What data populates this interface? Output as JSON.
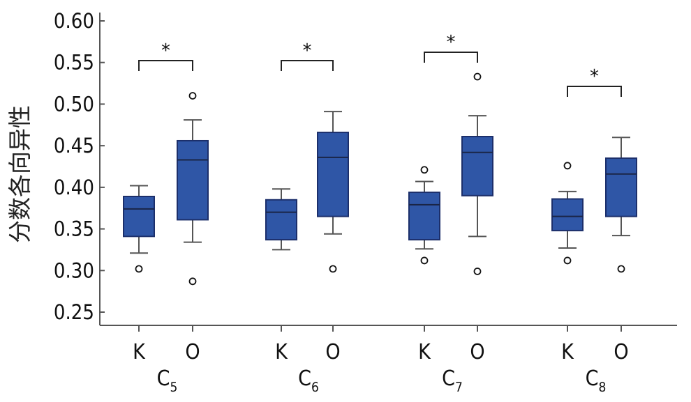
{
  "chart_data": {
    "type": "boxplot",
    "ylabel": "分数各向异性",
    "xlabel": "",
    "ylim": [
      0.23,
      0.61
    ],
    "yticks": [
      0.25,
      0.3,
      0.35,
      0.4,
      0.45,
      0.5,
      0.55,
      0.6
    ],
    "ytick_labels": [
      "0.25",
      "0.30",
      "0.35",
      "0.40",
      "0.45",
      "0.50",
      "0.55",
      "0.60"
    ],
    "box_color": "#2f56a6",
    "box_edge_color": "#1c2f6b",
    "groups": [
      {
        "label": "C",
        "sub": "5",
        "significance": "*",
        "boxes": [
          {
            "label": "K",
            "whisker_low": 0.321,
            "q1": 0.341,
            "median": 0.374,
            "q3": 0.389,
            "whisker_high": 0.402,
            "outliers": [
              0.302
            ]
          },
          {
            "label": "O",
            "whisker_low": 0.334,
            "q1": 0.361,
            "median": 0.433,
            "q3": 0.456,
            "whisker_high": 0.481,
            "outliers": [
              0.51,
              0.287
            ]
          }
        ]
      },
      {
        "label": "C",
        "sub": "6",
        "significance": "*",
        "boxes": [
          {
            "label": "K",
            "whisker_low": 0.325,
            "q1": 0.337,
            "median": 0.37,
            "q3": 0.385,
            "whisker_high": 0.398,
            "outliers": []
          },
          {
            "label": "O",
            "whisker_low": 0.344,
            "q1": 0.365,
            "median": 0.436,
            "q3": 0.466,
            "whisker_high": 0.491,
            "outliers": [
              0.302
            ]
          }
        ]
      },
      {
        "label": "C",
        "sub": "7",
        "significance": "*",
        "boxes": [
          {
            "label": "K",
            "whisker_low": 0.326,
            "q1": 0.337,
            "median": 0.379,
            "q3": 0.394,
            "whisker_high": 0.407,
            "outliers": [
              0.421,
              0.312
            ]
          },
          {
            "label": "O",
            "whisker_low": 0.341,
            "q1": 0.39,
            "median": 0.442,
            "q3": 0.461,
            "whisker_high": 0.486,
            "outliers": [
              0.533,
              0.299
            ]
          }
        ]
      },
      {
        "label": "C",
        "sub": "8",
        "significance": "*",
        "boxes": [
          {
            "label": "K",
            "whisker_low": 0.327,
            "q1": 0.348,
            "median": 0.365,
            "q3": 0.386,
            "whisker_high": 0.395,
            "outliers": [
              0.426,
              0.312
            ]
          },
          {
            "label": "O",
            "whisker_low": 0.342,
            "q1": 0.365,
            "median": 0.416,
            "q3": 0.435,
            "whisker_high": 0.46,
            "outliers": [
              0.302
            ]
          }
        ]
      }
    ]
  }
}
